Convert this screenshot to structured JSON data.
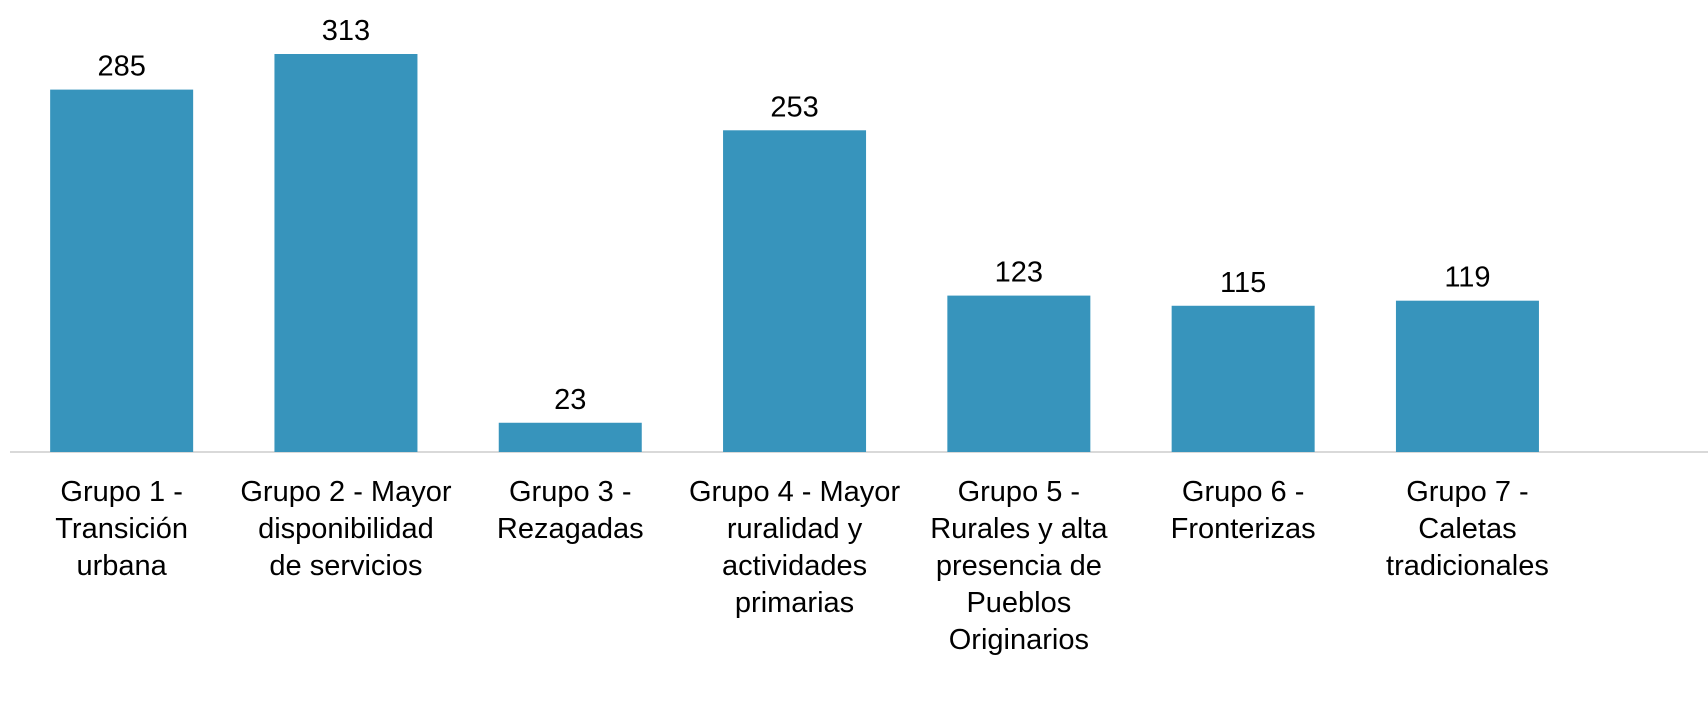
{
  "chart_data": {
    "type": "bar",
    "categories": [
      "Grupo 1 - Transición urbana",
      "Grupo 2 - Mayor disponibilidad de servicios",
      "Grupo 3 - Rezagadas",
      "Grupo 4 - Mayor ruralidad y actividades primarias",
      "Grupo 5 - Rurales y alta presencia de Pueblos Originarios",
      "Grupo 6 - Fronterizas",
      "Grupo 7 - Caletas tradicionales"
    ],
    "values": [
      285,
      313,
      23,
      253,
      123,
      115,
      119
    ],
    "color": "#3794bc"
  }
}
